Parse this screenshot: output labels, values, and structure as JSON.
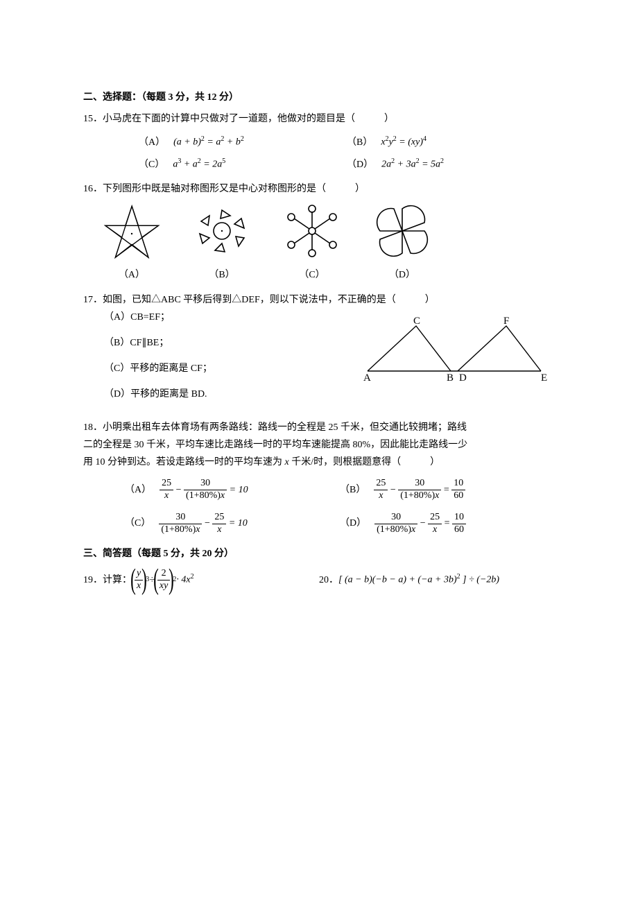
{
  "section2": {
    "title": "二、选择题：（每题 3 分，共 12 分）",
    "q15": {
      "stem": "15．小马虎在下面的计算中只做对了一道题，他做对的题目是（　　　）",
      "A": {
        "label": "（A）",
        "expr_html": "(<i>a</i> + <i>b</i>)<sup>2</sup> = <i>a</i><sup>2</sup> + <i>b</i><sup>2</sup>"
      },
      "B": {
        "label": "（B）",
        "expr_html": "<i>x</i><sup>2</sup><i>y</i><sup>2</sup> = (<i>xy</i>)<sup>4</sup>"
      },
      "C": {
        "label": "（C）",
        "expr_html": "<i>a</i><sup>3</sup> + <i>a</i><sup>2</sup> = 2<i>a</i><sup>5</sup>"
      },
      "D": {
        "label": "（D）",
        "expr_html": "2<i>a</i><sup>2</sup> + 3<i>a</i><sup>2</sup> = 5<i>a</i><sup>2</sup>"
      }
    },
    "q16": {
      "stem": "16．下列图形中既是轴对称图形又是中心对称图形的是（　　　）",
      "labels": {
        "A": "（A）",
        "B": "（B）",
        "C": "（C）",
        "D": "（D）"
      },
      "svg": {
        "stroke": "#000000",
        "fill": "none",
        "width": 100,
        "height": 90,
        "stroke_width": 1.6
      }
    },
    "q17": {
      "stem": "17．如图，已知△ABC 平移后得到△DEF，则以下说法中，不正确的是（　　　）",
      "A": "（A）CB=EF；",
      "B": "（B）CF∥BE；",
      "C": "（C）平移的距离是 CF；",
      "D": "（D）平移的距离是 BD.",
      "diagram": {
        "stroke": "#000000",
        "stroke_width": 1.4,
        "labels": {
          "A": "A",
          "B": "B",
          "C": "C",
          "D": "D",
          "E": "E",
          "F": "F"
        }
      }
    },
    "q18": {
      "stem1": "18．小明乘出租车去体育场有两条路线：路线一的全程是 25 千米，但交通比较拥堵；路线",
      "stem2": "二的全程是 30 千米，平均车速比走路线一时的平均车速能提高 80%，因此能比走路线一少",
      "stem3": "用 10 分钟到达。若设走路线一时的平均车速为 <i>x</i> 千米/时，则根据题意得（　　　）",
      "opts": {
        "A": {
          "label": "（A）",
          "rhs": "= 10",
          "f1n": "25",
          "f1d": "<i>x</i>",
          "f2n": "30",
          "f2d": "(1+80%)<i>x</i>"
        },
        "B": {
          "label": "（B）",
          "rhs_frac": {
            "n": "10",
            "d": "60"
          },
          "f1n": "25",
          "f1d": "<i>x</i>",
          "f2n": "30",
          "f2d": "(1+80%)<i>x</i>"
        },
        "C": {
          "label": "（C）",
          "rhs": "= 10",
          "f1n": "30",
          "f1d": "(1+80%)<i>x</i>",
          "f2n": "25",
          "f2d": "<i>x</i>"
        },
        "D": {
          "label": "（D）",
          "rhs_frac": {
            "n": "10",
            "d": "60"
          },
          "f1n": "30",
          "f1d": "(1+80%)<i>x</i>",
          "f2n": "25",
          "f2d": "<i>x</i>"
        }
      }
    }
  },
  "section3": {
    "title": "三、简答题（每题 5 分，共 20 分）",
    "q19": {
      "label": "19．计算：",
      "f1n": "<i>y</i>",
      "f1d": "<i>x</i>",
      "exp1": "3",
      "mid": " ÷ ",
      "f2n": "2",
      "f2d": "<i>xy</i>",
      "exp2": "2",
      "tail": " · 4<i>x</i><sup>2</sup>"
    },
    "q20": {
      "label": "20．",
      "expr_html": "[ (<i>a</i> − <i>b</i>)(−<i>b</i> − <i>a</i>) + (−<i>a</i> + 3<i>b</i>)<sup>2</sup> ] ÷ (−2<i>b</i>)"
    }
  }
}
